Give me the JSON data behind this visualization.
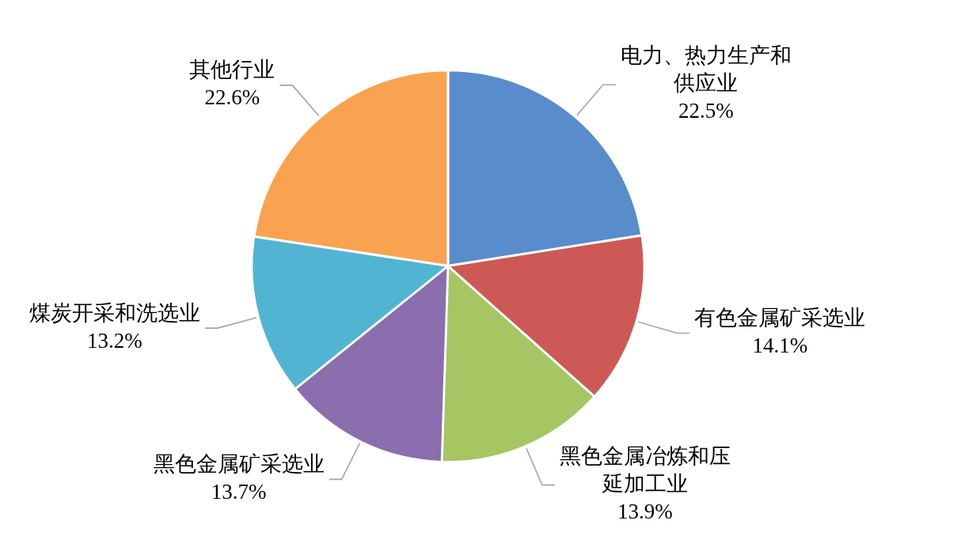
{
  "chart_data": {
    "type": "pie",
    "categories": [
      "电力、热力生产和供应业",
      "有色金属矿采选业",
      "黑色金属冶炼和压延加工业",
      "黑色金属矿采选业",
      "煤炭开采和洗选业",
      "其他行业"
    ],
    "values": [
      22.5,
      14.1,
      13.9,
      13.7,
      13.2,
      22.6
    ],
    "colors": [
      "#598ccb",
      "#cd5957",
      "#a5c663",
      "#8a6eae",
      "#52b4d3",
      "#f9a350"
    ],
    "value_labels": [
      "22.5%",
      "14.1%",
      "13.9%",
      "13.7%",
      "13.2%",
      "22.6%"
    ]
  }
}
